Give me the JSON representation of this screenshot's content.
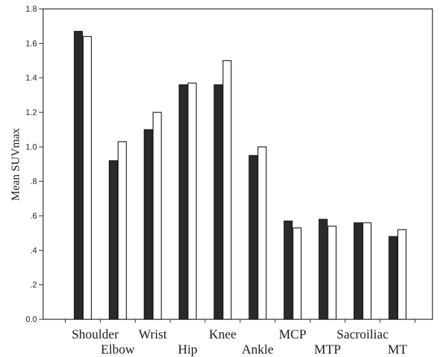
{
  "chart_data": {
    "type": "bar",
    "title": "",
    "xlabel": "",
    "ylabel": "Mean SUVmax",
    "ylim": [
      0,
      1.8
    ],
    "yticks": [
      {
        "value": 0.0,
        "label": "0.0"
      },
      {
        "value": 0.2,
        "label": ".2"
      },
      {
        "value": 0.4,
        "label": ".4"
      },
      {
        "value": 0.6,
        "label": ".6"
      },
      {
        "value": 0.8,
        "label": ".8"
      },
      {
        "value": 1.0,
        "label": "1.0"
      },
      {
        "value": 1.2,
        "label": "1.2"
      },
      {
        "value": 1.4,
        "label": "1.4"
      },
      {
        "value": 1.6,
        "label": "1.6"
      },
      {
        "value": 1.8,
        "label": "1.8"
      }
    ],
    "categories": [
      "Shoulder",
      "Elbow",
      "Wrist",
      "Hip",
      "Knee",
      "Ankle",
      "MCP",
      "MTP",
      "Sacroiliac",
      "MT"
    ],
    "series": [
      {
        "color": "#2a2a2a",
        "values": [
          1.67,
          0.92,
          1.1,
          1.36,
          1.36,
          0.95,
          0.57,
          0.58,
          0.56,
          0.48
        ]
      },
      {
        "color": "#ffffff",
        "values": [
          1.64,
          1.03,
          1.2,
          1.37,
          1.5,
          1.0,
          0.53,
          0.54,
          0.56,
          0.52
        ]
      }
    ],
    "grid": false,
    "legend": "none"
  }
}
